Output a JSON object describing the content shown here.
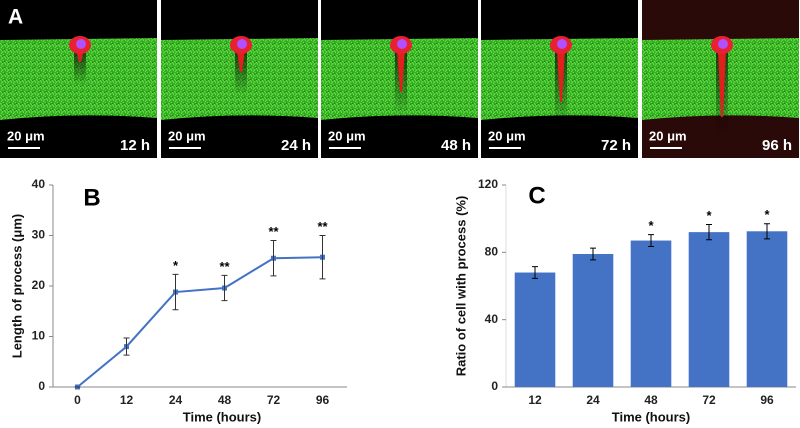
{
  "panel_a": {
    "label": "A",
    "images": [
      {
        "scale_bar": "20 μm",
        "time": "12 h"
      },
      {
        "scale_bar": "20 μm",
        "time": "24 h"
      },
      {
        "scale_bar": "20 μm",
        "time": "48 h"
      },
      {
        "scale_bar": "20 μm",
        "time": "72 h"
      },
      {
        "scale_bar": "20 μm",
        "time": "96 h"
      }
    ]
  },
  "chart_data": [
    {
      "type": "line",
      "panel_label": "B",
      "xlabel": "Time (hours)",
      "ylabel": "Length of process (μm)",
      "categories": [
        "0",
        "12",
        "24",
        "48",
        "72",
        "96"
      ],
      "values": [
        0,
        8,
        18.8,
        19.6,
        25.5,
        25.7
      ],
      "errors": [
        0,
        1.7,
        3.5,
        2.5,
        3.5,
        4.3
      ],
      "annotations": [
        null,
        null,
        "*",
        "**",
        "**",
        "**"
      ],
      "color": "#4472c4",
      "ylim": [
        0,
        40
      ],
      "yticks": [
        0,
        10,
        20,
        30,
        40
      ]
    },
    {
      "type": "bar",
      "panel_label": "C",
      "xlabel": "Time (hours)",
      "ylabel": "Ratio of cell with process (%)",
      "categories": [
        "12",
        "24",
        "48",
        "72",
        "96"
      ],
      "values": [
        68,
        79,
        87,
        92,
        92.5
      ],
      "errors": [
        3.5,
        3.5,
        3.5,
        4.5,
        4.5
      ],
      "annotations": [
        null,
        null,
        "*",
        "*",
        "*"
      ],
      "color": "#4472c4",
      "ylim": [
        0,
        120
      ],
      "yticks": [
        0,
        40,
        80,
        120
      ]
    }
  ]
}
